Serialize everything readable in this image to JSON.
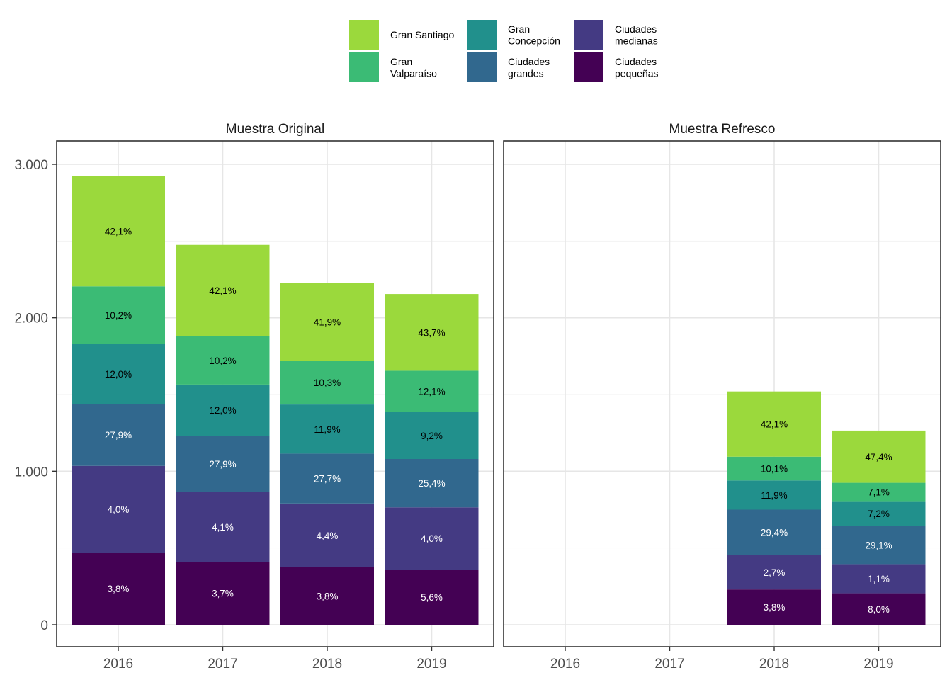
{
  "chart_data": {
    "type": "bar",
    "stacked": true,
    "legend_position": "top",
    "grid": true,
    "ylim": [
      0,
      3000
    ],
    "yticks": [
      0,
      1000,
      2000,
      3000
    ],
    "ytick_labels": [
      "0",
      "1.000",
      "2.000",
      "3.000"
    ],
    "categories": [
      "2016",
      "2017",
      "2018",
      "2019"
    ],
    "legend": [
      {
        "key": "gran_santiago",
        "label": [
          "Gran Santiago"
        ],
        "color": "#9BD93C"
      },
      {
        "key": "gran_valparaiso",
        "label": [
          "Gran",
          "Valparaíso"
        ],
        "color": "#3BBB75"
      },
      {
        "key": "gran_concepcion",
        "label": [
          "Gran",
          "Concepción"
        ],
        "color": "#21908C"
      },
      {
        "key": "ciudades_grandes",
        "label": [
          "Ciudades",
          "grandes"
        ],
        "color": "#31688E"
      },
      {
        "key": "ciudades_medianas",
        "label": [
          "Ciudades",
          "medianas"
        ],
        "color": "#443A83"
      },
      {
        "key": "ciudades_pequenas",
        "label": [
          "Ciudades",
          "pequeñas"
        ],
        "color": "#440154"
      }
    ],
    "stack_order": [
      "ciudades_pequenas",
      "ciudades_medianas",
      "ciudades_grandes",
      "gran_concepcion",
      "gran_valparaiso",
      "gran_santiago"
    ],
    "label_colors": {
      "ciudades_pequenas": "#ffffff",
      "ciudades_medianas": "#ffffff",
      "ciudades_grandes": "#ffffff",
      "gran_concepcion": "#000000",
      "gran_valparaiso": "#000000",
      "gran_santiago": "#000000"
    },
    "panels": [
      {
        "title": "Muestra Original",
        "bars": [
          {
            "x": "2016",
            "segments": [
              {
                "series": "ciudades_pequenas",
                "value": 470,
                "label": "3,8%"
              },
              {
                "series": "ciudades_medianas",
                "value": 565,
                "label": "4,0%"
              },
              {
                "series": "ciudades_grandes",
                "value": 405,
                "label": "27,9%"
              },
              {
                "series": "gran_concepcion",
                "value": 390,
                "label": "12,0%"
              },
              {
                "series": "gran_valparaiso",
                "value": 375,
                "label": "10,2%"
              },
              {
                "series": "gran_santiago",
                "value": 720,
                "label": "42,1%"
              }
            ]
          },
          {
            "x": "2017",
            "segments": [
              {
                "series": "ciudades_pequenas",
                "value": 410,
                "label": "3,7%"
              },
              {
                "series": "ciudades_medianas",
                "value": 455,
                "label": "4,1%"
              },
              {
                "series": "ciudades_grandes",
                "value": 365,
                "label": "27,9%"
              },
              {
                "series": "gran_concepcion",
                "value": 335,
                "label": "12,0%"
              },
              {
                "series": "gran_valparaiso",
                "value": 315,
                "label": "10,2%"
              },
              {
                "series": "gran_santiago",
                "value": 595,
                "label": "42,1%"
              }
            ]
          },
          {
            "x": "2018",
            "segments": [
              {
                "series": "ciudades_pequenas",
                "value": 375,
                "label": "3,8%"
              },
              {
                "series": "ciudades_medianas",
                "value": 415,
                "label": "4,4%"
              },
              {
                "series": "ciudades_grandes",
                "value": 325,
                "label": "27,7%"
              },
              {
                "series": "gran_concepcion",
                "value": 320,
                "label": "11,9%"
              },
              {
                "series": "gran_valparaiso",
                "value": 285,
                "label": "10,3%"
              },
              {
                "series": "gran_santiago",
                "value": 505,
                "label": "41,9%"
              }
            ]
          },
          {
            "x": "2019",
            "segments": [
              {
                "series": "ciudades_pequenas",
                "value": 360,
                "label": "5,6%"
              },
              {
                "series": "ciudades_medianas",
                "value": 405,
                "label": "4,0%"
              },
              {
                "series": "ciudades_grandes",
                "value": 315,
                "label": "25,4%"
              },
              {
                "series": "gran_concepcion",
                "value": 305,
                "label": "9,2%"
              },
              {
                "series": "gran_valparaiso",
                "value": 270,
                "label": "12,1%"
              },
              {
                "series": "gran_santiago",
                "value": 500,
                "label": "43,7%"
              }
            ]
          }
        ]
      },
      {
        "title": "Muestra Refresco",
        "bars": [
          {
            "x": "2018",
            "segments": [
              {
                "series": "ciudades_pequenas",
                "value": 230,
                "label": "3,8%"
              },
              {
                "series": "ciudades_medianas",
                "value": 225,
                "label": "2,7%"
              },
              {
                "series": "ciudades_grandes",
                "value": 295,
                "label": "29,4%"
              },
              {
                "series": "gran_concepcion",
                "value": 190,
                "label": "11,9%"
              },
              {
                "series": "gran_valparaiso",
                "value": 155,
                "label": "10,1%"
              },
              {
                "series": "gran_santiago",
                "value": 425,
                "label": "42,1%"
              }
            ]
          },
          {
            "x": "2019",
            "segments": [
              {
                "series": "ciudades_pequenas",
                "value": 205,
                "label": "8,0%"
              },
              {
                "series": "ciudades_medianas",
                "value": 190,
                "label": "1,1%"
              },
              {
                "series": "ciudades_grandes",
                "value": 250,
                "label": "29,1%"
              },
              {
                "series": "gran_concepcion",
                "value": 160,
                "label": "7,2%"
              },
              {
                "series": "gran_valparaiso",
                "value": 120,
                "label": "7,1%"
              },
              {
                "series": "gran_santiago",
                "value": 340,
                "label": "47,4%"
              }
            ]
          }
        ]
      }
    ]
  }
}
